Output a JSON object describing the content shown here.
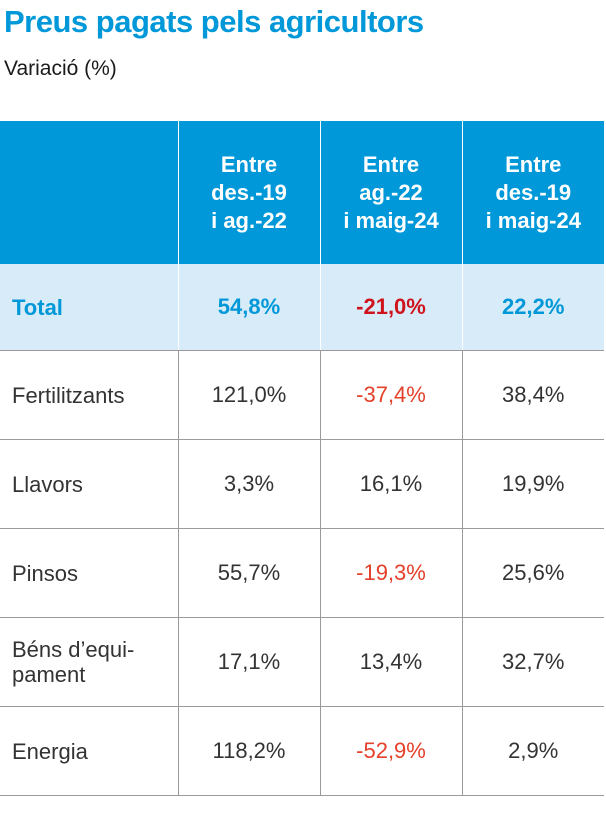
{
  "title": "Preus pagats pels agricultors",
  "subtitle": "Variació (%)",
  "colors": {
    "accent": "#0098d8",
    "total_negative": "#d0141d",
    "negative": "#e4402a",
    "total_bg": "#d7ecf8"
  },
  "chart_data": {
    "type": "table",
    "title": "Preus pagats pels agricultors",
    "subtitle": "Variació (%)",
    "columns": [
      {
        "id": "c1",
        "lines": [
          "Entre",
          "des.-19",
          "i ag.-22"
        ]
      },
      {
        "id": "c2",
        "lines": [
          "Entre",
          "ag.-22",
          "i maig-24"
        ]
      },
      {
        "id": "c3",
        "lines": [
          "Entre",
          "des.-19",
          "i maig-24"
        ]
      }
    ],
    "rows": [
      {
        "label": "Total",
        "values": [
          54.8,
          -21.0,
          22.2
        ],
        "display": [
          "54,8%",
          "-21,0%",
          "22,2%"
        ],
        "total": true
      },
      {
        "label": "Fertilitzants",
        "values": [
          121.0,
          -37.4,
          38.4
        ],
        "display": [
          "121,0%",
          "-37,4%",
          "38,4%"
        ]
      },
      {
        "label": "Llavors",
        "values": [
          3.3,
          16.1,
          19.9
        ],
        "display": [
          "3,3%",
          "16,1%",
          "19,9%"
        ]
      },
      {
        "label": "Pinsos",
        "values": [
          55.7,
          -19.3,
          25.6
        ],
        "display": [
          "55,7%",
          "-19,3%",
          "25,6%"
        ]
      },
      {
        "label": "Béns d’equi-\npament",
        "values": [
          17.1,
          13.4,
          32.7
        ],
        "display": [
          "17,1%",
          "13,4%",
          "32,7%"
        ]
      },
      {
        "label": "Energia",
        "values": [
          118.2,
          -52.9,
          2.9
        ],
        "display": [
          "118,2%",
          "-52,9%",
          "2,9%"
        ]
      }
    ]
  }
}
